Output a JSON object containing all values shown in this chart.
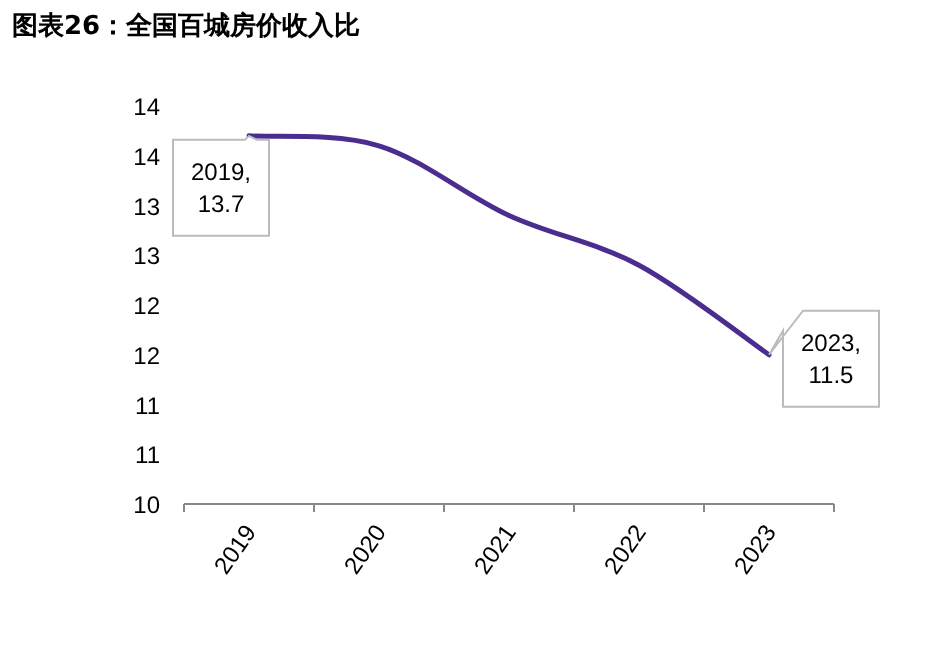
{
  "chart_data": {
    "type": "line",
    "title": "图表26：全国百城房价收入比",
    "categories": [
      "2019",
      "2020",
      "2021",
      "2022",
      "2023"
    ],
    "series": [
      {
        "color": "#4b2c8f",
        "values": [
          13.7,
          13.6,
          12.9,
          12.4,
          11.5
        ]
      }
    ],
    "ylim": [
      10,
      14
    ],
    "yticks": [
      10,
      {
        "value": 10.5,
        "label": "11"
      },
      11,
      {
        "value": 11.5,
        "label": "12"
      },
      12,
      {
        "value": 12.5,
        "label": "13"
      },
      13,
      {
        "value": 13.5,
        "label": "14"
      },
      14
    ],
    "annotations": [
      {
        "text": "2019, 13.7",
        "x": "2019",
        "y": 13.7
      },
      {
        "text": "2023, 11.5",
        "x": "2023",
        "y": 11.5
      }
    ],
    "grid": false,
    "marker": "none"
  }
}
